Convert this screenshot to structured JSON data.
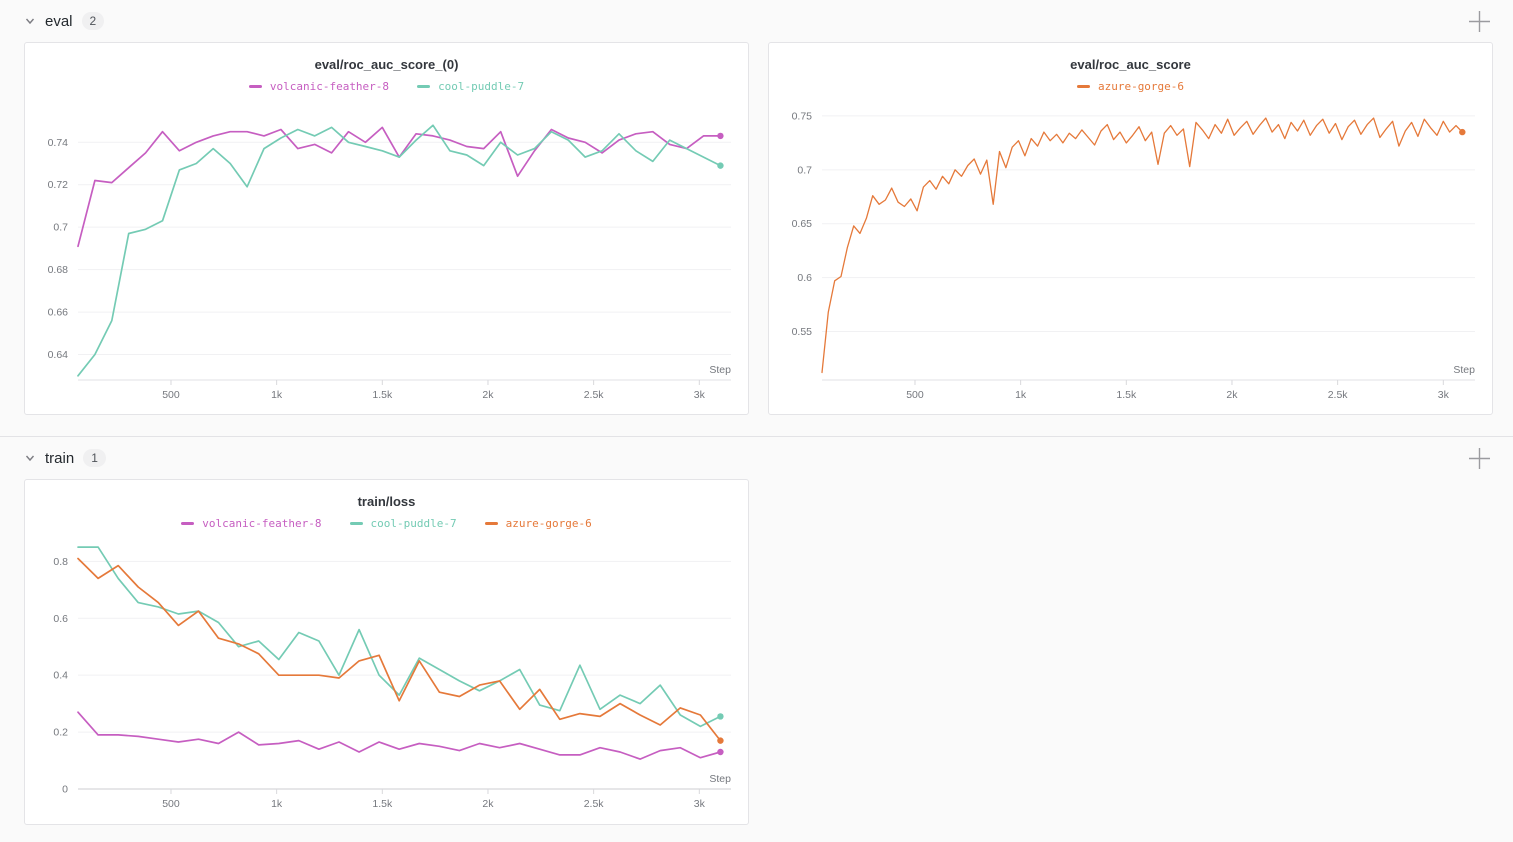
{
  "sections": [
    {
      "label": "eval",
      "count": "2"
    },
    {
      "label": "train",
      "count": "1"
    }
  ],
  "ui": {
    "badge_bg": "#f0f0f1",
    "panel_border": "#e4e4e7",
    "grid_color": "#f1f1f3",
    "axis_color": "#e2e2e6",
    "axis_color_dark": "#cdcdd2",
    "tick_label_color": "#75787e",
    "icon_color": "#9b9b9f"
  },
  "chart_data": [
    {
      "type": "line",
      "title": "eval/roc_auc_score_(0)",
      "xlabel": "Step",
      "xlim": [
        60,
        3150
      ],
      "ylim": [
        0.628,
        0.7585
      ],
      "yticks": [
        {
          "v": 0.64,
          "label": "0.64"
        },
        {
          "v": 0.66,
          "label": "0.66"
        },
        {
          "v": 0.68,
          "label": "0.68"
        },
        {
          "v": 0.7,
          "label": "0.7"
        },
        {
          "v": 0.72,
          "label": "0.72"
        },
        {
          "v": 0.74,
          "label": "0.74"
        }
      ],
      "xticks": [
        {
          "v": 500,
          "label": "500"
        },
        {
          "v": 1000,
          "label": "1k"
        },
        {
          "v": 1500,
          "label": "1.5k"
        },
        {
          "v": 2000,
          "label": "2k"
        },
        {
          "v": 2500,
          "label": "2.5k"
        },
        {
          "v": 3000,
          "label": "3k"
        }
      ],
      "grid": "horizontal",
      "legend_position": "top",
      "series": [
        {
          "name": "volcanic-feather-8",
          "color": "#c65ec1",
          "x_start": 60,
          "x_step": 80,
          "end_marker": true,
          "values": [
            0.691,
            0.722,
            0.721,
            0.728,
            0.735,
            0.745,
            0.736,
            0.74,
            0.743,
            0.745,
            0.745,
            0.743,
            0.746,
            0.737,
            0.739,
            0.735,
            0.745,
            0.74,
            0.747,
            0.733,
            0.744,
            0.743,
            0.741,
            0.738,
            0.737,
            0.745,
            0.724,
            0.736,
            0.746,
            0.742,
            0.74,
            0.735,
            0.741,
            0.744,
            0.745,
            0.739,
            0.737,
            0.743,
            0.743
          ]
        },
        {
          "name": "cool-puddle-7",
          "color": "#74cbb4",
          "x_start": 60,
          "x_step": 80,
          "end_marker": true,
          "values": [
            0.63,
            0.64,
            0.656,
            0.697,
            0.699,
            0.703,
            0.727,
            0.73,
            0.737,
            0.73,
            0.719,
            0.737,
            0.742,
            0.746,
            0.743,
            0.747,
            0.74,
            0.738,
            0.736,
            0.733,
            0.741,
            0.748,
            0.736,
            0.734,
            0.729,
            0.74,
            0.734,
            0.737,
            0.745,
            0.741,
            0.733,
            0.736,
            0.744,
            0.736,
            0.731,
            0.741,
            0.737,
            0.733,
            0.729
          ]
        }
      ]
    },
    {
      "type": "line",
      "title": "eval/roc_auc_score",
      "xlabel": "Step",
      "xlim": [
        60,
        3150
      ],
      "ylim": [
        0.505,
        0.762
      ],
      "yticks": [
        {
          "v": 0.55,
          "label": "0.55"
        },
        {
          "v": 0.6,
          "label": "0.6"
        },
        {
          "v": 0.65,
          "label": "0.65"
        },
        {
          "v": 0.7,
          "label": "0.7"
        },
        {
          "v": 0.75,
          "label": "0.75"
        }
      ],
      "xticks": [
        {
          "v": 500,
          "label": "500"
        },
        {
          "v": 1000,
          "label": "1k"
        },
        {
          "v": 1500,
          "label": "1.5k"
        },
        {
          "v": 2000,
          "label": "2k"
        },
        {
          "v": 2500,
          "label": "2.5k"
        },
        {
          "v": 3000,
          "label": "3k"
        }
      ],
      "grid": "horizontal",
      "legend_position": "top",
      "series": [
        {
          "name": "azure-gorge-6",
          "color": "#e5793a",
          "x_start": 60,
          "x_step": 30,
          "end_marker": true,
          "values": [
            0.512,
            0.568,
            0.597,
            0.601,
            0.628,
            0.648,
            0.641,
            0.655,
            0.676,
            0.668,
            0.672,
            0.683,
            0.67,
            0.666,
            0.673,
            0.662,
            0.684,
            0.69,
            0.682,
            0.694,
            0.687,
            0.7,
            0.694,
            0.704,
            0.71,
            0.696,
            0.709,
            0.668,
            0.717,
            0.702,
            0.721,
            0.727,
            0.713,
            0.729,
            0.722,
            0.735,
            0.727,
            0.733,
            0.725,
            0.734,
            0.729,
            0.737,
            0.73,
            0.723,
            0.736,
            0.742,
            0.728,
            0.735,
            0.725,
            0.732,
            0.74,
            0.727,
            0.735,
            0.705,
            0.734,
            0.741,
            0.732,
            0.738,
            0.703,
            0.744,
            0.737,
            0.729,
            0.742,
            0.734,
            0.747,
            0.732,
            0.739,
            0.745,
            0.733,
            0.741,
            0.748,
            0.735,
            0.742,
            0.729,
            0.744,
            0.736,
            0.746,
            0.732,
            0.741,
            0.747,
            0.734,
            0.743,
            0.728,
            0.74,
            0.746,
            0.733,
            0.742,
            0.748,
            0.73,
            0.738,
            0.745,
            0.722,
            0.736,
            0.744,
            0.731,
            0.747,
            0.739,
            0.732,
            0.745,
            0.735,
            0.741,
            0.735
          ]
        }
      ]
    },
    {
      "type": "line",
      "title": "train/loss",
      "xlabel": "Step",
      "xlim": [
        60,
        3150
      ],
      "ylim": [
        0,
        0.875
      ],
      "yticks": [
        {
          "v": 0.0,
          "label": "0"
        },
        {
          "v": 0.2,
          "label": "0.2"
        },
        {
          "v": 0.4,
          "label": "0.4"
        },
        {
          "v": 0.6,
          "label": "0.6"
        },
        {
          "v": 0.8,
          "label": "0.8"
        }
      ],
      "xticks": [
        {
          "v": 500,
          "label": "500"
        },
        {
          "v": 1000,
          "label": "1k"
        },
        {
          "v": 1500,
          "label": "1.5k"
        },
        {
          "v": 2000,
          "label": "2k"
        },
        {
          "v": 2500,
          "label": "2.5k"
        },
        {
          "v": 3000,
          "label": "3k"
        }
      ],
      "grid": "horizontal",
      "legend_position": "top",
      "series": [
        {
          "name": "volcanic-feather-8",
          "color": "#c65ec1",
          "x_start": 60,
          "x_step": 95,
          "end_marker": true,
          "values": [
            0.27,
            0.19,
            0.19,
            0.185,
            0.175,
            0.165,
            0.175,
            0.16,
            0.2,
            0.155,
            0.16,
            0.17,
            0.14,
            0.165,
            0.13,
            0.165,
            0.14,
            0.16,
            0.15,
            0.135,
            0.16,
            0.145,
            0.16,
            0.14,
            0.12,
            0.12,
            0.145,
            0.13,
            0.105,
            0.135,
            0.145,
            0.11,
            0.13
          ]
        },
        {
          "name": "cool-puddle-7",
          "color": "#74cbb4",
          "x_start": 60,
          "x_step": 95,
          "end_marker": true,
          "values": [
            0.85,
            0.85,
            0.74,
            0.655,
            0.64,
            0.615,
            0.625,
            0.585,
            0.5,
            0.52,
            0.455,
            0.55,
            0.52,
            0.4,
            0.56,
            0.4,
            0.33,
            0.46,
            0.42,
            0.38,
            0.345,
            0.38,
            0.42,
            0.295,
            0.275,
            0.435,
            0.28,
            0.33,
            0.3,
            0.365,
            0.26,
            0.22,
            0.255
          ]
        },
        {
          "name": "azure-gorge-6",
          "color": "#e5793a",
          "x_start": 60,
          "x_step": 95,
          "end_marker": true,
          "values": [
            0.81,
            0.74,
            0.785,
            0.71,
            0.655,
            0.575,
            0.625,
            0.53,
            0.51,
            0.475,
            0.4,
            0.4,
            0.4,
            0.39,
            0.45,
            0.47,
            0.31,
            0.45,
            0.34,
            0.325,
            0.365,
            0.38,
            0.28,
            0.35,
            0.245,
            0.265,
            0.255,
            0.3,
            0.26,
            0.225,
            0.285,
            0.26,
            0.17
          ]
        }
      ]
    }
  ]
}
